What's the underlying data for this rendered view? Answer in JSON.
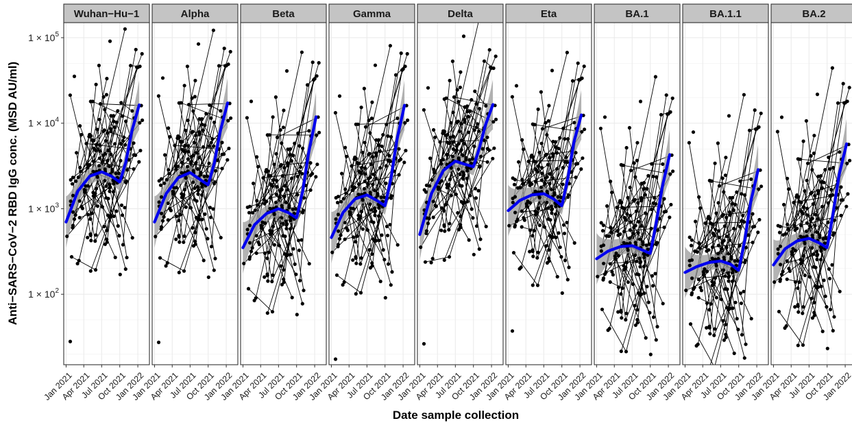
{
  "chart_data": {
    "type": "scatter",
    "xlabel": "Date sample collection",
    "ylabel": "Anti−SARS−CoV−2 RBD IgG conc. (MSD AU/ml)",
    "y_scale": "log10",
    "ylim": [
      15,
      150000
    ],
    "xlim": [
      "2020-12-20",
      "2022-03-01"
    ],
    "x_ticks": [
      {
        "date": "2021-01-01",
        "label": "Jan 2021"
      },
      {
        "date": "2021-04-01",
        "label": "Apr 2021"
      },
      {
        "date": "2021-07-01",
        "label": "Jul 2021"
      },
      {
        "date": "2021-10-01",
        "label": "Oct 2021"
      },
      {
        "date": "2022-01-01",
        "label": "Jan 2022"
      }
    ],
    "y_ticks": [
      {
        "value": 100,
        "base": "1 × 10",
        "exp": "2"
      },
      {
        "value": 1000,
        "base": "1 × 10",
        "exp": "3"
      },
      {
        "value": 10000,
        "base": "1 × 10",
        "exp": "4"
      },
      {
        "value": 100000,
        "base": "1 × 10",
        "exp": "5"
      }
    ],
    "grid": true,
    "colors": {
      "points": "#000000",
      "lines": "#000000",
      "smooth": "#0000ee",
      "ribbon": "#999999",
      "strip": "#c4c4c4",
      "panel_border": "#333333",
      "grid": "#ebebeb"
    },
    "panels": [
      {
        "name": "Wuhan−Hu−1",
        "scale": 1.0,
        "noise": 1.0,
        "smooth": [
          [
            "2021-01-01",
            700
          ],
          [
            "2021-03-01",
            1600
          ],
          [
            "2021-05-01",
            2400
          ],
          [
            "2021-07-01",
            2700
          ],
          [
            "2021-08-20",
            2400
          ],
          [
            "2021-10-01",
            2050
          ],
          [
            "2021-11-01",
            3500
          ],
          [
            "2021-12-01",
            8000
          ],
          [
            "2022-01-10",
            17000
          ]
        ]
      },
      {
        "name": "Alpha",
        "scale": 1.0,
        "noise": 1.0,
        "smooth": [
          [
            "2021-01-01",
            700
          ],
          [
            "2021-03-01",
            1500
          ],
          [
            "2021-05-01",
            2300
          ],
          [
            "2021-07-01",
            2650
          ],
          [
            "2021-08-20",
            2200
          ],
          [
            "2021-10-01",
            1900
          ],
          [
            "2021-11-01",
            3400
          ],
          [
            "2021-12-01",
            8000
          ],
          [
            "2022-01-10",
            18000
          ]
        ]
      },
      {
        "name": "Beta",
        "scale": 0.42,
        "noise": 1.05,
        "smooth": [
          [
            "2021-01-01",
            350
          ],
          [
            "2021-03-01",
            650
          ],
          [
            "2021-05-01",
            880
          ],
          [
            "2021-07-01",
            1000
          ],
          [
            "2021-08-20",
            900
          ],
          [
            "2021-10-01",
            780
          ],
          [
            "2021-11-01",
            1600
          ],
          [
            "2021-12-01",
            4500
          ],
          [
            "2022-01-10",
            12500
          ]
        ]
      },
      {
        "name": "Gamma",
        "scale": 0.55,
        "noise": 1.0,
        "smooth": [
          [
            "2021-01-01",
            460
          ],
          [
            "2021-03-01",
            900
          ],
          [
            "2021-05-01",
            1300
          ],
          [
            "2021-07-01",
            1450
          ],
          [
            "2021-08-20",
            1250
          ],
          [
            "2021-10-01",
            1080
          ],
          [
            "2021-11-01",
            2300
          ],
          [
            "2021-12-01",
            6500
          ],
          [
            "2022-01-10",
            17000
          ]
        ]
      },
      {
        "name": "Delta",
        "scale": 1.2,
        "noise": 0.95,
        "smooth": [
          [
            "2021-01-01",
            500
          ],
          [
            "2021-03-01",
            1500
          ],
          [
            "2021-05-01",
            2800
          ],
          [
            "2021-07-01",
            3600
          ],
          [
            "2021-08-20",
            3300
          ],
          [
            "2021-10-01",
            3100
          ],
          [
            "2021-11-01",
            5200
          ],
          [
            "2021-12-01",
            9500
          ],
          [
            "2022-01-10",
            17000
          ]
        ]
      },
      {
        "name": "Eta",
        "scale": 0.65,
        "noise": 0.95,
        "smooth": [
          [
            "2021-01-01",
            950
          ],
          [
            "2021-03-01",
            1250
          ],
          [
            "2021-05-01",
            1450
          ],
          [
            "2021-07-01",
            1500
          ],
          [
            "2021-08-20",
            1300
          ],
          [
            "2021-10-01",
            1080
          ],
          [
            "2021-11-01",
            2300
          ],
          [
            "2021-12-01",
            6000
          ],
          [
            "2022-01-10",
            13000
          ]
        ]
      },
      {
        "name": "BA.1",
        "scale": 0.16,
        "noise": 1.1,
        "smooth": [
          [
            "2021-01-01",
            260
          ],
          [
            "2021-03-01",
            320
          ],
          [
            "2021-05-01",
            360
          ],
          [
            "2021-07-01",
            370
          ],
          [
            "2021-08-20",
            330
          ],
          [
            "2021-10-01",
            300
          ],
          [
            "2021-11-01",
            700
          ],
          [
            "2021-12-01",
            1800
          ],
          [
            "2022-01-10",
            4500
          ]
        ]
      },
      {
        "name": "BA.1.1",
        "scale": 0.12,
        "noise": 1.1,
        "smooth": [
          [
            "2021-01-01",
            180
          ],
          [
            "2021-03-01",
            210
          ],
          [
            "2021-05-01",
            235
          ],
          [
            "2021-07-01",
            245
          ],
          [
            "2021-08-20",
            225
          ],
          [
            "2021-10-01",
            190
          ],
          [
            "2021-11-01",
            430
          ],
          [
            "2021-12-01",
            1200
          ],
          [
            "2022-01-10",
            3000
          ]
        ]
      },
      {
        "name": "BA.2",
        "scale": 0.22,
        "noise": 1.1,
        "smooth": [
          [
            "2021-01-01",
            220
          ],
          [
            "2021-03-01",
            340
          ],
          [
            "2021-05-01",
            420
          ],
          [
            "2021-07-01",
            450
          ],
          [
            "2021-08-20",
            400
          ],
          [
            "2021-10-01",
            350
          ],
          [
            "2021-11-01",
            900
          ],
          [
            "2021-12-01",
            2500
          ],
          [
            "2022-01-10",
            6000
          ]
        ]
      }
    ]
  }
}
